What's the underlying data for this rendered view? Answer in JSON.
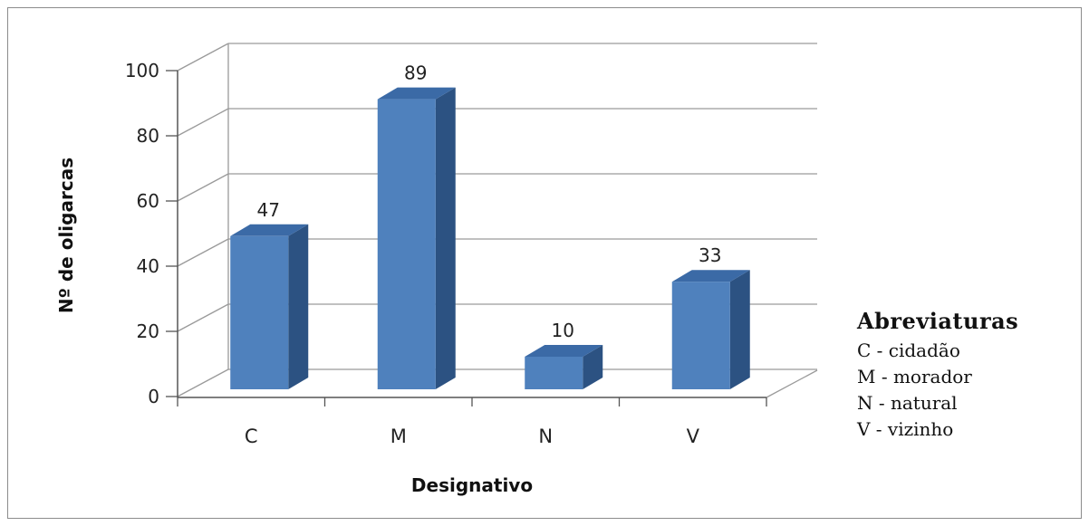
{
  "chart_data": {
    "type": "bar",
    "categories": [
      "C",
      "M",
      "N",
      "V"
    ],
    "values": [
      47,
      89,
      10,
      33
    ],
    "xlabel": "Designativo",
    "ylabel": "Nº de oligarcas",
    "ylim": [
      0,
      100
    ],
    "yticks": [
      0,
      20,
      40,
      60,
      80,
      100
    ],
    "data_labels": true,
    "grid": true,
    "bar_color": "#4f81bd",
    "bar_side_color": "#2c5282",
    "bar_top_color": "#3b6aa6"
  },
  "legend": {
    "title": "Abreviaturas",
    "items": [
      "C - cidadão",
      "M - morador",
      "N - natural",
      "V - vizinho"
    ]
  }
}
